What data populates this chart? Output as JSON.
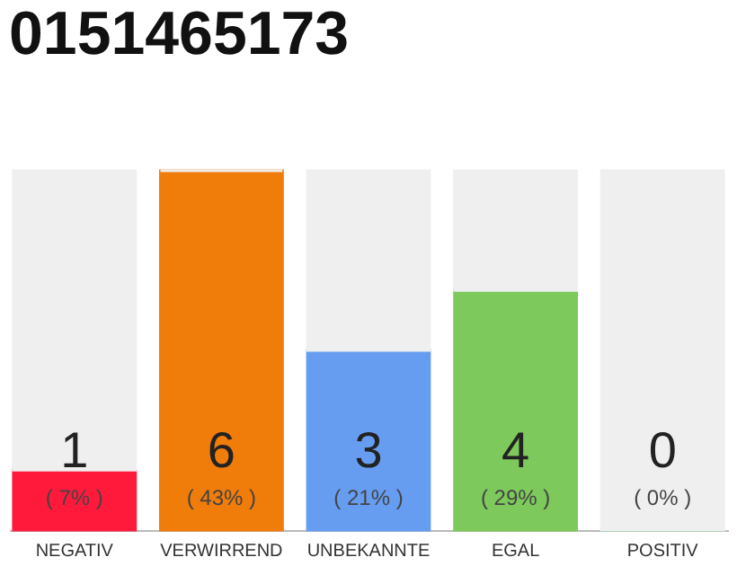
{
  "chart_data": {
    "type": "bar",
    "title": "0151465173",
    "categories": [
      "NEGATIV",
      "VERWIRREND",
      "UNBEKANNTE",
      "EGAL",
      "POSITIV"
    ],
    "stacked": true,
    "ylim": [
      0,
      6
    ],
    "series": [
      {
        "values": [
          1,
          6,
          3,
          4,
          0
        ],
        "value_labels": [
          "1",
          "6",
          "3",
          "4",
          "0"
        ],
        "colors": [
          "#ff1a3c",
          "#f07c0a",
          "#669df0",
          "#7dc95b",
          "#22a844"
        ]
      },
      {
        "values": [
          5,
          0,
          3,
          2,
          6
        ],
        "color": "#efefef"
      }
    ],
    "annotations": [
      "( 7% )",
      "( 43% )",
      "( 21% )",
      "( 29% )",
      "( 0% )"
    ]
  }
}
